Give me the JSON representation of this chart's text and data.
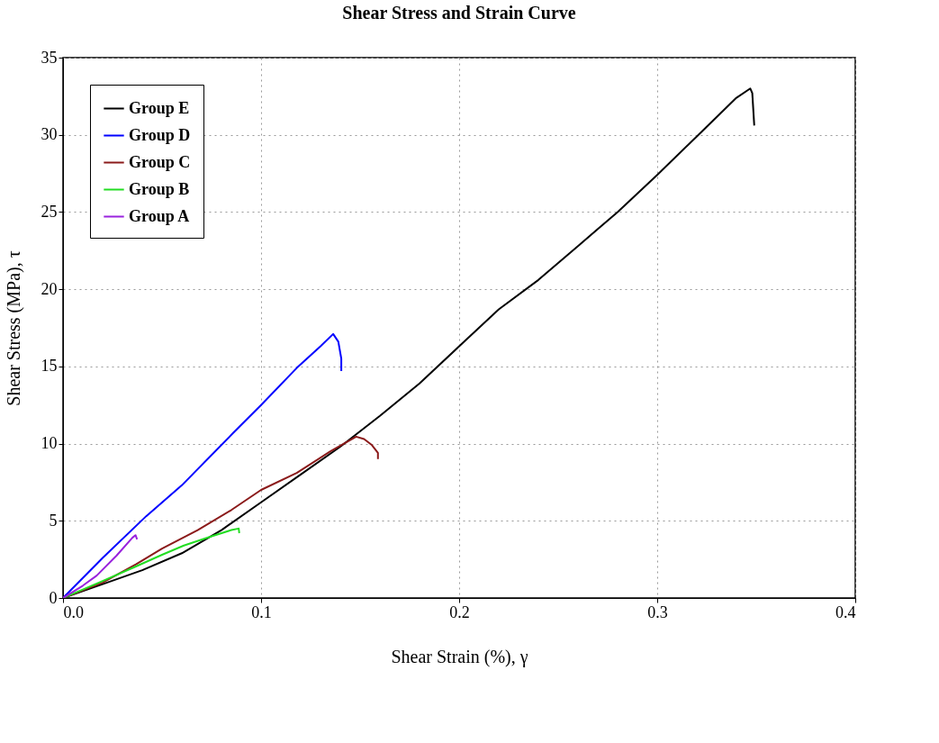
{
  "chart_data": {
    "type": "line",
    "title": "Shear Stress and Strain Curve",
    "xlabel": "Shear Strain (%), γ",
    "ylabel": "Shear Stress (MPa), τ",
    "xlim": [
      0,
      0.4
    ],
    "xticks": [
      {
        "value": 0,
        "label": "0.0"
      },
      0.1,
      0.2,
      0.3,
      0.4
    ],
    "ylim": [
      0,
      35
    ],
    "yticks": [
      0,
      5,
      10,
      15,
      20,
      25,
      30,
      35
    ],
    "grid": true,
    "legend": "top left",
    "line_style": "solid",
    "series": [
      {
        "name": "Group E",
        "color": "#000000",
        "x": [
          0,
          0.02,
          0.04,
          0.06,
          0.08,
          0.1,
          0.12,
          0.14,
          0.16,
          0.18,
          0.2,
          0.22,
          0.24,
          0.26,
          0.28,
          0.3,
          0.32,
          0.34,
          0.347,
          0.348,
          0.349
        ],
        "values": [
          0,
          0.9,
          1.8,
          2.9,
          4.4,
          6.2,
          8.0,
          9.8,
          11.8,
          13.9,
          16.3,
          18.7,
          20.6,
          22.8,
          25.0,
          27.4,
          29.9,
          32.4,
          33.0,
          32.7,
          30.6
        ]
      },
      {
        "name": "Group D",
        "color": "#0000ff",
        "x": [
          0,
          0.01,
          0.02,
          0.042,
          0.06,
          0.086,
          0.1,
          0.118,
          0.13,
          0.1364,
          0.139,
          0.1405,
          0.1405
        ],
        "values": [
          0,
          1.3,
          2.6,
          5.3,
          7.3,
          10.7,
          12.5,
          14.9,
          16.3,
          17.1,
          16.6,
          15.5,
          14.7
        ]
      },
      {
        "name": "Group C",
        "color": "#8b1a1a",
        "x": [
          0,
          0.02,
          0.037,
          0.05,
          0.068,
          0.085,
          0.1,
          0.118,
          0.135,
          0.148,
          0.152,
          0.156,
          0.159,
          0.159
        ],
        "values": [
          0,
          1.0,
          2.2,
          3.2,
          4.4,
          5.7,
          7.0,
          8.1,
          9.5,
          10.45,
          10.3,
          9.9,
          9.4,
          9.0
        ]
      },
      {
        "name": "Group B",
        "color": "#22dd22",
        "x": [
          0,
          0.02,
          0.036,
          0.05,
          0.061,
          0.075,
          0.085,
          0.0887,
          0.089
        ],
        "values": [
          0,
          1.1,
          2.0,
          2.8,
          3.4,
          4.0,
          4.4,
          4.5,
          4.2
        ]
      },
      {
        "name": "Group A",
        "color": "#9922dd",
        "x": [
          0,
          0.01,
          0.017,
          0.027,
          0.035,
          0.0366,
          0.0374
        ],
        "values": [
          0,
          0.8,
          1.45,
          2.74,
          3.9,
          4.07,
          3.8
        ]
      }
    ]
  }
}
